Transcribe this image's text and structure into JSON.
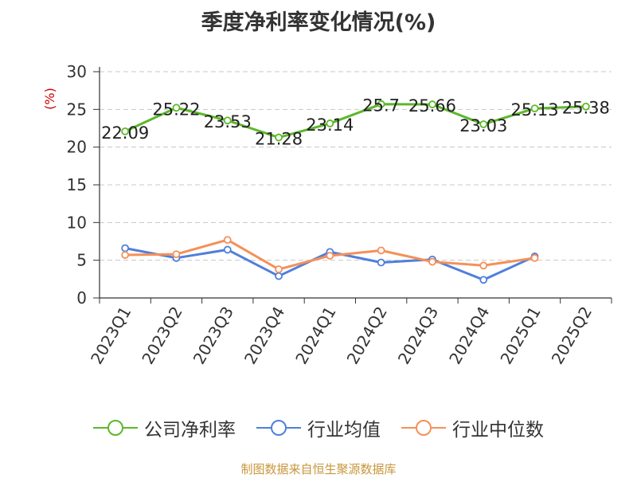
{
  "chart_data": {
    "type": "line",
    "title": "季度净利率变化情况(%)",
    "ylabel": "(%)",
    "xlabel": "",
    "categories": [
      "2023Q1",
      "2023Q2",
      "2023Q3",
      "2023Q4",
      "2024Q1",
      "2024Q2",
      "2024Q3",
      "2024Q4",
      "2025Q1",
      "2025Q2"
    ],
    "ylim": [
      0,
      30
    ],
    "yticks": [
      0,
      5,
      10,
      15,
      20,
      25,
      30
    ],
    "grid": true,
    "legend_position": "bottom",
    "series": [
      {
        "name": "公司净利率",
        "color": "#5cb82a",
        "values": [
          22.09,
          25.22,
          23.53,
          21.28,
          23.14,
          25.7,
          25.66,
          23.03,
          25.13,
          25.38
        ],
        "labels": [
          "22.09",
          "25.22",
          "23.53",
          "21.28",
          "23.14",
          "25.7",
          "25.66",
          "23.03",
          "25.13",
          "25.38"
        ]
      },
      {
        "name": "行业均值",
        "color": "#4f7fdc",
        "values": [
          6.6,
          5.3,
          6.4,
          2.9,
          6.1,
          4.7,
          5.1,
          2.4,
          5.5,
          null
        ]
      },
      {
        "name": "行业中位数",
        "color": "#f59058",
        "values": [
          5.7,
          5.8,
          7.7,
          3.8,
          5.6,
          6.3,
          4.8,
          4.3,
          5.3,
          null
        ]
      }
    ]
  },
  "source_text": "制图数据来自恒生聚源数据库"
}
